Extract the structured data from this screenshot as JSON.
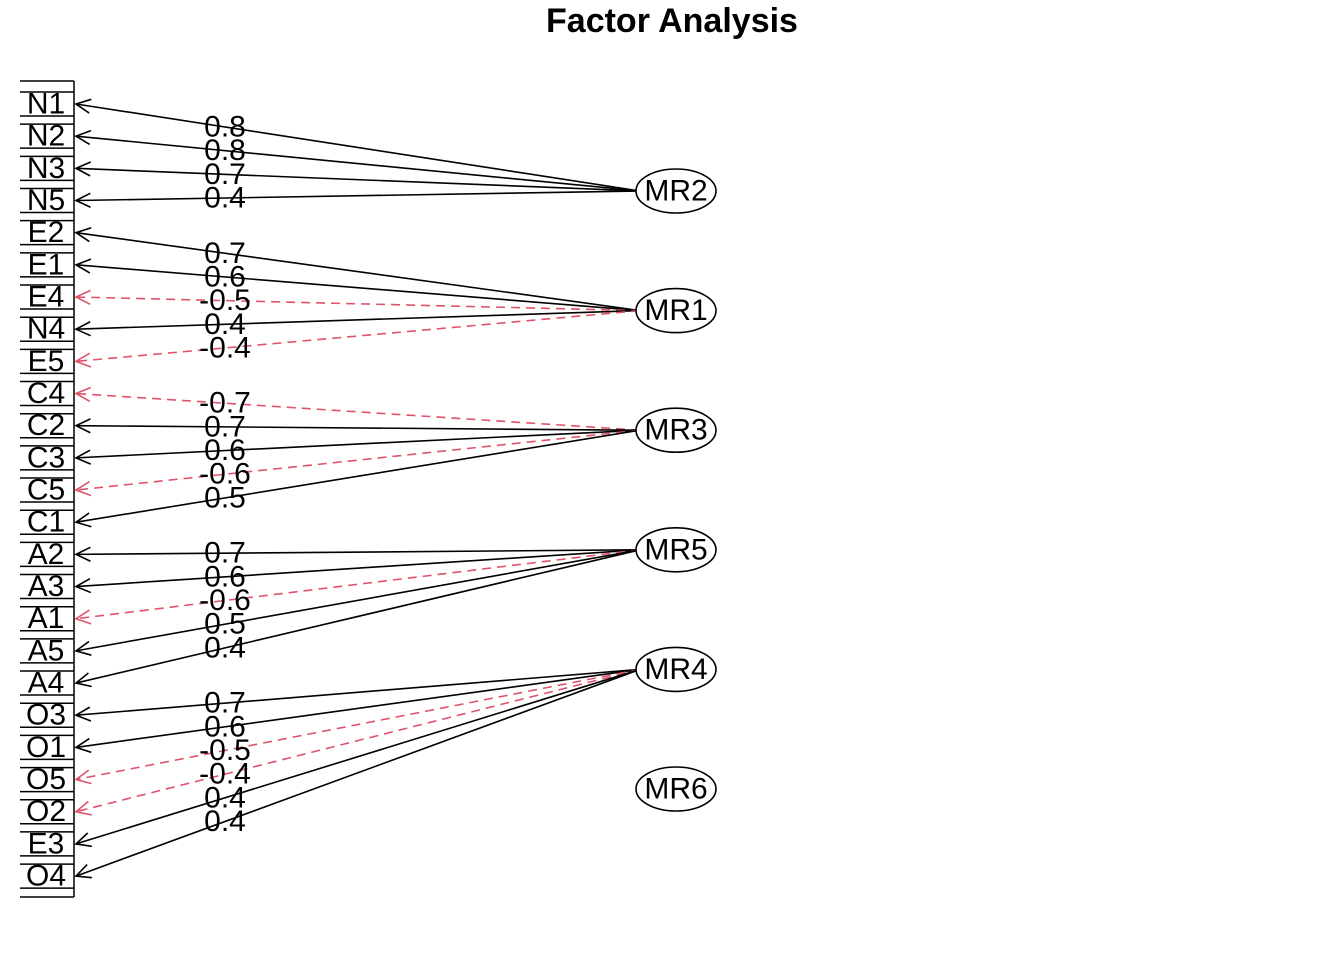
{
  "title": "Factor Analysis",
  "colors": {
    "positive": "#000000",
    "negative": "#DF536B"
  },
  "variables": [
    "N1",
    "N2",
    "N3",
    "N5",
    "E2",
    "E1",
    "E4",
    "N4",
    "E5",
    "C4",
    "C2",
    "C3",
    "C5",
    "C1",
    "A2",
    "A3",
    "A1",
    "A5",
    "A4",
    "O3",
    "O1",
    "O5",
    "O2",
    "E3",
    "O4"
  ],
  "factors": [
    "MR2",
    "MR1",
    "MR3",
    "MR5",
    "MR4",
    "MR6"
  ],
  "loadings": [
    {
      "factor": "MR2",
      "variable": "N1",
      "value": "0.8"
    },
    {
      "factor": "MR2",
      "variable": "N2",
      "value": "0.8"
    },
    {
      "factor": "MR2",
      "variable": "N3",
      "value": "0.7"
    },
    {
      "factor": "MR2",
      "variable": "N5",
      "value": "0.4"
    },
    {
      "factor": "MR1",
      "variable": "E2",
      "value": "0.7"
    },
    {
      "factor": "MR1",
      "variable": "E1",
      "value": "0.6"
    },
    {
      "factor": "MR1",
      "variable": "E4",
      "value": "-0.5"
    },
    {
      "factor": "MR1",
      "variable": "N4",
      "value": "0.4"
    },
    {
      "factor": "MR1",
      "variable": "E5",
      "value": "-0.4"
    },
    {
      "factor": "MR3",
      "variable": "C4",
      "value": "-0.7"
    },
    {
      "factor": "MR3",
      "variable": "C2",
      "value": "0.7"
    },
    {
      "factor": "MR3",
      "variable": "C3",
      "value": "0.6"
    },
    {
      "factor": "MR3",
      "variable": "C5",
      "value": "-0.6"
    },
    {
      "factor": "MR3",
      "variable": "C1",
      "value": "0.5"
    },
    {
      "factor": "MR5",
      "variable": "A2",
      "value": "0.7"
    },
    {
      "factor": "MR5",
      "variable": "A3",
      "value": "0.6"
    },
    {
      "factor": "MR5",
      "variable": "A1",
      "value": "-0.6"
    },
    {
      "factor": "MR5",
      "variable": "A5",
      "value": "0.5"
    },
    {
      "factor": "MR5",
      "variable": "A4",
      "value": "0.4"
    },
    {
      "factor": "MR4",
      "variable": "O3",
      "value": "0.7"
    },
    {
      "factor": "MR4",
      "variable": "O1",
      "value": "0.6"
    },
    {
      "factor": "MR4",
      "variable": "O5",
      "value": "-0.5"
    },
    {
      "factor": "MR4",
      "variable": "O2",
      "value": "-0.4"
    },
    {
      "factor": "MR4",
      "variable": "E3",
      "value": "0.4"
    },
    {
      "factor": "MR4",
      "variable": "O4",
      "value": "0.4"
    }
  ]
}
